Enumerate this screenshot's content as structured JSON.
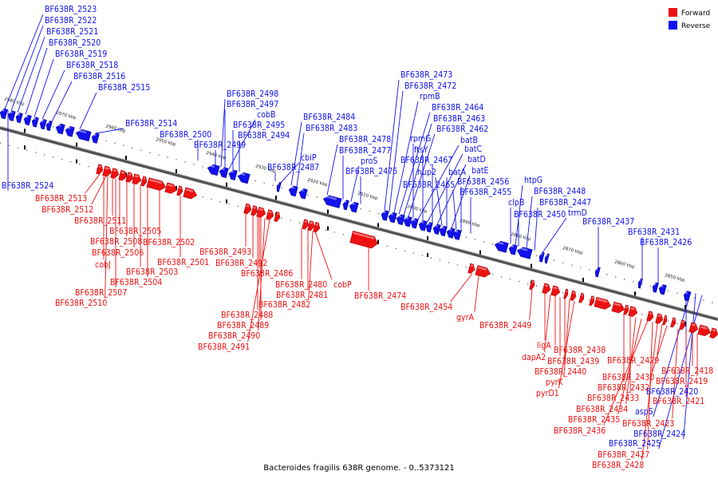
{
  "caption": "Bacteroides fragilis 638R genome. - 0..5373121",
  "legend": {
    "forward_label": "Forward",
    "reverse_label": "Reverse",
    "forward_color": "#ee1111",
    "reverse_color": "#1111ee"
  },
  "ticks": [
    "2980 kbp",
    "2970 kbp",
    "2960 kbp",
    "2950 kbp",
    "2940 kbp",
    "2930 kbp",
    "2920 kbp",
    "2910 kbp",
    "2900 kbp",
    "2890 kbp",
    "2880 kbp",
    "2870 kbp",
    "2860 kbp",
    "2850 kbp"
  ],
  "reverse_labels": [
    "BF638R_2523",
    "BF638R_2522",
    "BF638R_2521",
    "BF638R_2520",
    "BF638R_2519",
    "BF638R_2518",
    "BF638R_2516",
    "BF638R_2515",
    "BF638R_2514",
    "BF638R_2500",
    "BF638R_2499",
    "BF638R_2498",
    "BF638R_2497",
    "cobB",
    "BF638R_2495",
    "BF638R_2494",
    "BF638R_2487",
    "cbiP",
    "BF638R_2484",
    "BF638R_2483",
    "BF638R_2478",
    "BF638R_2477",
    "proS",
    "BF638R_2475",
    "BF638R_2473",
    "BF638R_2472",
    "rpmB",
    "BF638R_2464",
    "BF638R_2463",
    "BF638R_2462",
    "rpmG",
    "batB",
    "ftsY",
    "batC",
    "BF638R_2467",
    "batD",
    "hup2",
    "batA",
    "batE",
    "BF638R_2465",
    "BF638R_2456",
    "BF638R_2455",
    "htpG",
    "BF638R_2448",
    "clpB",
    "BF638R_2447",
    "BF638R_2450",
    "trmD",
    "BF638R_2437",
    "BF638R_2431",
    "BF638R_2426",
    "BF638R_2524",
    "BF638R_2420",
    "aspS",
    "BF638R_2424",
    "BF638R_2425"
  ],
  "forward_labels": [
    "BF638R_2513",
    "BF638R_2512",
    "BF638R_2511",
    "BF638R_2505",
    "BF638R_2508",
    "BF638R_2502",
    "BF638R_2506",
    "cobJ",
    "BF638R_2503",
    "BF638R_2501",
    "BF638R_2504",
    "BF638R_2507",
    "BF638R_2510",
    "BF638R_2493",
    "BF638R_2492",
    "BF638R_2486",
    "BF638R_2480",
    "cobP",
    "BF638R_2481",
    "BF638R_2482",
    "BF638R_2488",
    "BF638R_2489",
    "BF638R_2490",
    "BF638R_2491",
    "BF638R_2474",
    "BF638R_2454",
    "gyrA",
    "BF638R_2449",
    "ligA",
    "dapA2",
    "BF638R_2438",
    "BF638R_2439",
    "BF638R_2440",
    "pyrK",
    "pyrD1",
    "BF638R_2429",
    "BF638R_2430",
    "BF638R_2418",
    "BF638R_2419",
    "BF638R_2432",
    "BF638R_2433",
    "BF638R_2421",
    "BF638R_2434",
    "BF638R_2435",
    "BF638R_2423",
    "BF638R_2436",
    "BF638R_2427",
    "BF638R_2428"
  ]
}
